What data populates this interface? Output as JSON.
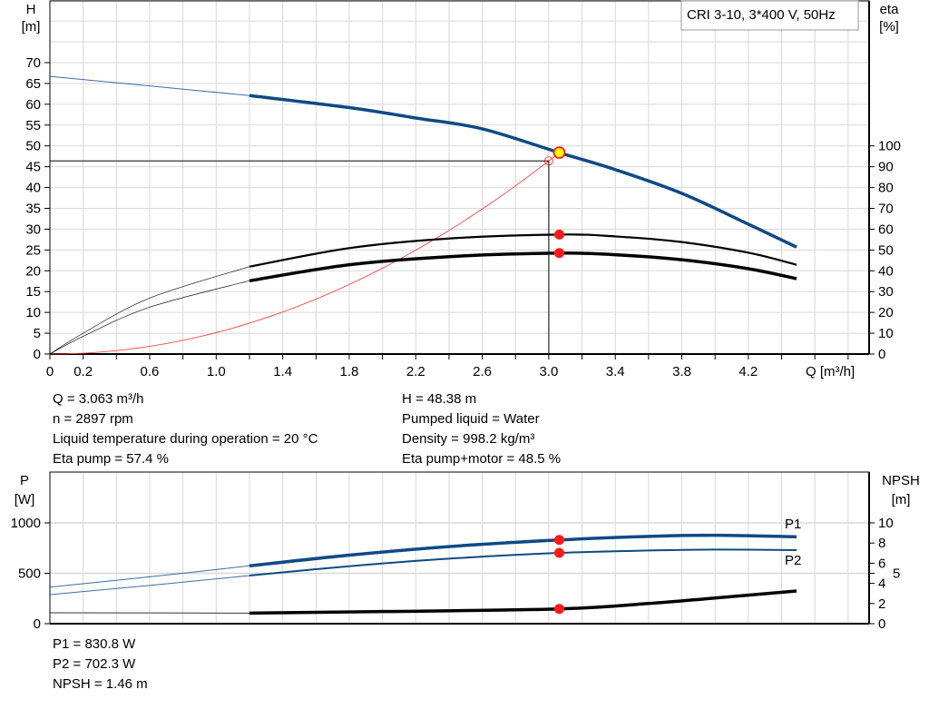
{
  "chart_data": [
    {
      "type": "line",
      "title": "CRI 3-10, 3*400 V, 50Hz",
      "xlabel": "Q [m³/h]",
      "ylabel_left": [
        "H",
        "[m]"
      ],
      "ylabel_right": [
        "eta",
        "[%]"
      ],
      "xlim": [
        0,
        4.93
      ],
      "ylim_left": [
        0,
        85
      ],
      "ylim_right": [
        0,
        170
      ],
      "x_ticks": [
        0,
        0.2,
        0.4,
        0.6,
        0.8,
        1.0,
        1.2,
        1.4,
        1.6,
        1.8,
        2.0,
        2.2,
        2.4,
        2.6,
        2.8,
        3.0,
        3.2,
        3.4,
        3.6,
        3.8,
        4.0,
        4.2,
        4.4,
        4.6,
        4.8
      ],
      "x_tick_labels": [
        "0",
        "0.2",
        "0.6",
        "1.0",
        "1.4",
        "1.8",
        "2.2",
        "2.6",
        "3.0",
        "3.4",
        "3.8",
        "4.2"
      ],
      "y_left_ticks": [
        "0",
        "5",
        "10",
        "15",
        "20",
        "25",
        "30",
        "35",
        "40",
        "45",
        "50",
        "55",
        "60",
        "65",
        "70"
      ],
      "y_right_ticks": [
        "0",
        "10",
        "20",
        "30",
        "40",
        "50",
        "60",
        "70",
        "80",
        "90",
        "100"
      ],
      "grid": true,
      "thick_from_q": 1.2,
      "series": [
        {
          "id": "head",
          "axis": "left",
          "color": "#0d4a85",
          "points": [
            [
              0,
              66.7
            ],
            [
              0.6,
              64.4
            ],
            [
              1.2,
              62.1
            ],
            [
              1.8,
              59.2
            ],
            [
              2.2,
              56.7
            ],
            [
              2.6,
              54.1
            ],
            [
              3.063,
              48.38
            ],
            [
              3.4,
              44.3
            ],
            [
              3.8,
              38.6
            ],
            [
              4.2,
              31.2
            ],
            [
              4.49,
              25.7
            ]
          ]
        },
        {
          "id": "eta-pump",
          "axis": "right",
          "color": "#000000",
          "points": [
            [
              0,
              0
            ],
            [
              0.2,
              10
            ],
            [
              0.6,
              26.9
            ],
            [
              1.2,
              42
            ],
            [
              1.8,
              50.9
            ],
            [
              2.4,
              55.5
            ],
            [
              3.063,
              57.4
            ],
            [
              3.4,
              56.5
            ],
            [
              3.8,
              53.8
            ],
            [
              4.2,
              48.7
            ],
            [
              4.49,
              42.9
            ]
          ]
        },
        {
          "id": "eta-pump-motor",
          "axis": "right",
          "color": "#000000",
          "points": [
            [
              0,
              0
            ],
            [
              0.2,
              8.5
            ],
            [
              0.6,
              22.5
            ],
            [
              1.2,
              35.2
            ],
            [
              1.8,
              42.9
            ],
            [
              2.4,
              46.8
            ],
            [
              3.063,
              48.5
            ],
            [
              3.4,
              47.7
            ],
            [
              3.8,
              45.3
            ],
            [
              4.2,
              41
            ],
            [
              4.49,
              36.2
            ]
          ]
        },
        {
          "id": "system-curve",
          "axis": "left",
          "color": "#ff3030",
          "quadratic_coeff": 5.156,
          "q_max": 3.063
        }
      ],
      "operating_point": {
        "q": 3.063,
        "h": 48.38,
        "eta_pump": 57.4,
        "eta_pump_motor": 48.5
      },
      "requested_point": {
        "q": 3.0,
        "h": 46.4
      }
    },
    {
      "type": "line",
      "ylabel_left": [
        "P",
        "[W]"
      ],
      "ylabel_right": [
        "NPSH",
        "[m]"
      ],
      "xlim": [
        0,
        4.93
      ],
      "ylim_left": [
        0,
        1500
      ],
      "ylim_right": [
        0,
        15
      ],
      "y_left_ticks": [
        "0",
        "500",
        "1000"
      ],
      "y_right_ticks": [
        {
          "v": 0,
          "t": "0"
        },
        {
          "v": 2,
          "t": "2"
        },
        {
          "v": 4,
          "t": "4"
        },
        {
          "v": 5,
          "t": "5"
        },
        {
          "v": 6,
          "t": "6"
        },
        {
          "v": 8,
          "t": "8"
        },
        {
          "v": 10,
          "t": "10"
        }
      ],
      "grid": true,
      "series": [
        {
          "id": "P1",
          "name": "P1",
          "axis": "left",
          "color": "#0d4a85",
          "points": [
            [
              0,
              363
            ],
            [
              0.6,
              465
            ],
            [
              1.2,
              574
            ],
            [
              1.8,
              680
            ],
            [
              2.4,
              765
            ],
            [
              3.063,
              830.8
            ],
            [
              3.6,
              866
            ],
            [
              4.0,
              877
            ],
            [
              4.49,
              862
            ]
          ]
        },
        {
          "id": "P2",
          "name": "P2",
          "axis": "left",
          "color": "#0d4a85",
          "points": [
            [
              0,
              288
            ],
            [
              0.6,
              380
            ],
            [
              1.2,
              477
            ],
            [
              1.8,
              570
            ],
            [
              2.4,
              645
            ],
            [
              3.063,
              702.3
            ],
            [
              3.6,
              726
            ],
            [
              4.0,
              735
            ],
            [
              4.49,
              730
            ]
          ]
        },
        {
          "id": "NPSH",
          "axis": "right",
          "color": "#000000",
          "points": [
            [
              0,
              1.08
            ],
            [
              1.2,
              1.05
            ],
            [
              2.0,
              1.2
            ],
            [
              3.063,
              1.46
            ],
            [
              3.6,
              2.0
            ],
            [
              4.0,
              2.55
            ],
            [
              4.49,
              3.24
            ]
          ]
        }
      ],
      "operating_point": {
        "q": 3.063,
        "p1": 830.8,
        "p2": 702.3,
        "npsh": 1.46
      }
    }
  ],
  "info": {
    "left": [
      "Q = 3.063 m³/h",
      "n = 2897 rpm",
      "Liquid temperature during operation = 20 °C",
      "Eta pump = 57.4 %"
    ],
    "right": [
      "H = 48.38 m",
      "Pumped liquid = Water",
      "Density = 998.2 kg/m³",
      "Eta pump+motor = 48.5 %"
    ],
    "bottom": [
      "P1 = 830.8 W",
      "P2 = 702.3 W",
      "NPSH = 1.46 m"
    ]
  },
  "colors": {
    "grid": "#d8d8d8",
    "head": "#0d4a85",
    "marker": "#ff1a1a",
    "op_fill": "#ffff00"
  }
}
